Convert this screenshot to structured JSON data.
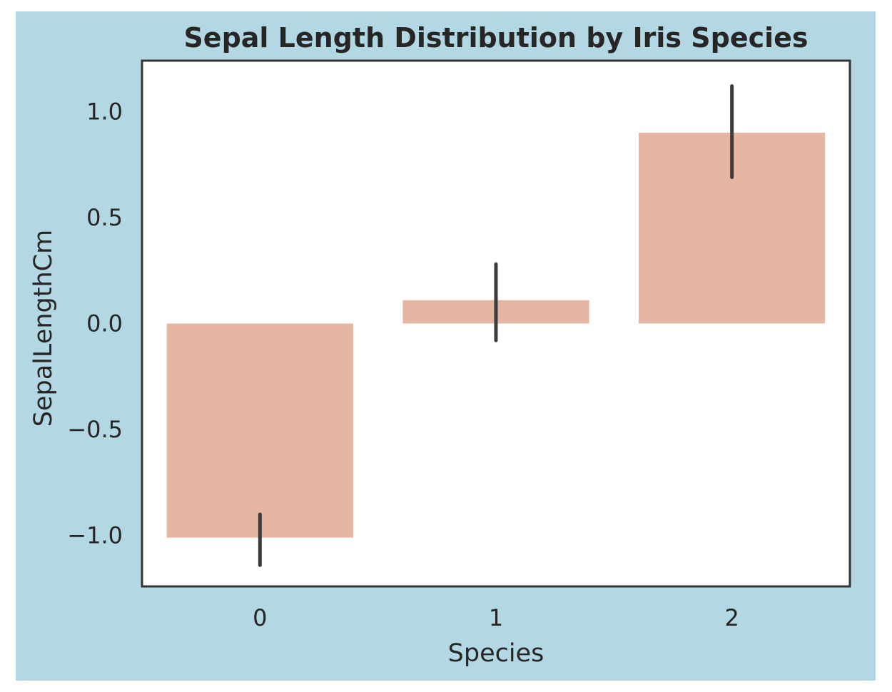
{
  "chart_data": {
    "type": "bar",
    "title": "Sepal Length Distribution by Iris Species",
    "xlabel": "Species",
    "ylabel": "SepalLengthCm",
    "categories": [
      "0",
      "1",
      "2"
    ],
    "values": [
      -1.01,
      0.11,
      0.9
    ],
    "error_bars": [
      {
        "low": -1.14,
        "high": -0.9
      },
      {
        "low": -0.08,
        "high": 0.28
      },
      {
        "low": 0.69,
        "high": 1.12
      }
    ],
    "ylim": [
      -1.24,
      1.24
    ],
    "yticks": [
      1.0,
      0.5,
      0.0,
      -0.5,
      -1.0
    ],
    "ytick_labels": [
      "1.0",
      "0.5",
      "0.0",
      "−0.5",
      "−1.0"
    ],
    "grid": false,
    "legend": "none"
  },
  "colors": {
    "figure_background": "#b4d7e4",
    "plot_background": "#ffffff",
    "bar_fill": "#e4b6a3",
    "error_bar": "#3c3c3c",
    "axis_frame": "#333333",
    "text": "#262626"
  }
}
